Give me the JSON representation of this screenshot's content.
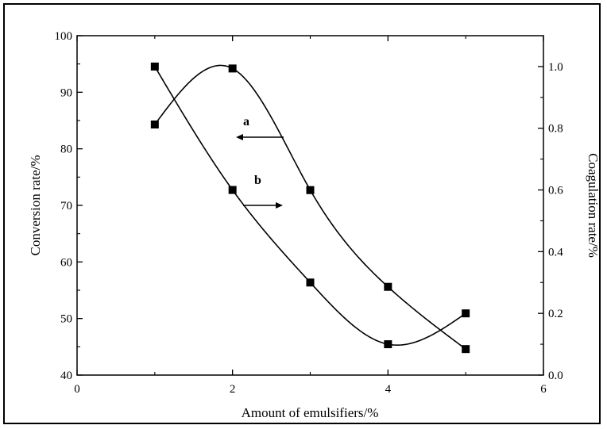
{
  "chart_data": {
    "type": "line",
    "xlabel": "Amount of emulsifiers/%",
    "ylabel": "Conversion rate/%",
    "y2label": "Coagulation rate/%",
    "xlim": [
      0,
      6
    ],
    "ylim": [
      40,
      100
    ],
    "y2lim": [
      0.0,
      1.1
    ],
    "x_ticks": [
      "0",
      "2",
      "4",
      "6"
    ],
    "y_ticks": [
      "40",
      "50",
      "60",
      "70",
      "80",
      "90",
      "100"
    ],
    "y2_ticks": [
      "0.0",
      "0.2",
      "0.4",
      "0.6",
      "0.8",
      "1.0"
    ],
    "grid": false,
    "series": [
      {
        "axis": "left",
        "x": [
          1,
          2,
          3,
          4,
          5
        ],
        "y": [
          84.3,
          94.2,
          72.7,
          55.6,
          44.6
        ]
      },
      {
        "axis": "right",
        "x": [
          1,
          2,
          3,
          4,
          5
        ],
        "y": [
          1.0,
          0.6,
          0.3,
          0.1,
          0.2
        ]
      }
    ],
    "annotations": [
      {
        "label": "a",
        "arrow": "left"
      },
      {
        "label": "b",
        "arrow": "right"
      }
    ]
  }
}
